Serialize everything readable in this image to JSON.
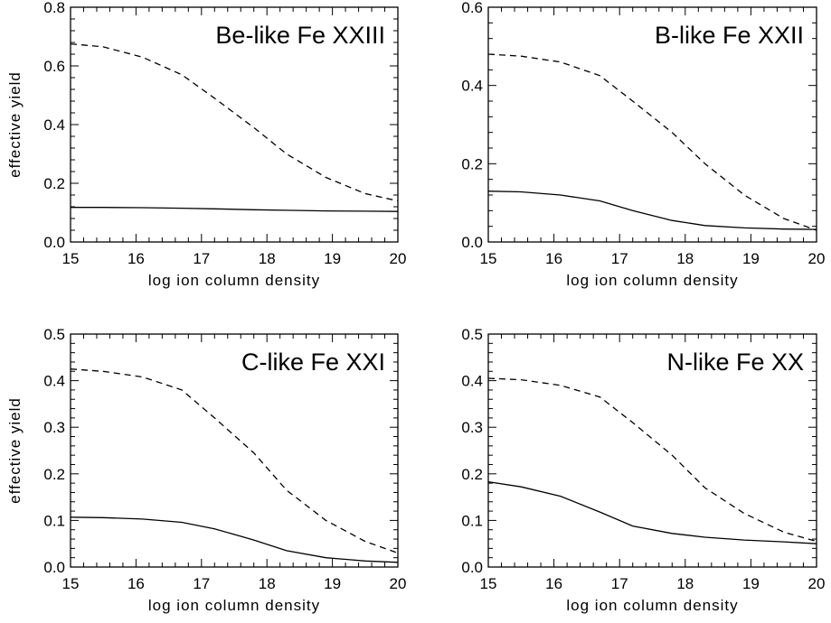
{
  "figure": {
    "xlabel": "log ion column density",
    "ylabel": "effective yield"
  },
  "chart_data": [
    {
      "type": "line",
      "title": "Be-like Fe XXIII",
      "xlabel": "log ion column density",
      "ylabel": "effective yield",
      "xlim": [
        15,
        20
      ],
      "ylim": [
        0.0,
        0.8
      ],
      "xticks": [
        "15",
        "16",
        "17",
        "18",
        "19",
        "20"
      ],
      "yticks": [
        "0.0",
        "0.2",
        "0.4",
        "0.6",
        "0.8"
      ],
      "x": [
        15.0,
        15.5,
        16.1,
        16.7,
        17.2,
        17.8,
        18.3,
        18.9,
        19.5,
        20.0
      ],
      "series": [
        {
          "style": "dashed",
          "values": [
            0.675,
            0.665,
            0.63,
            0.57,
            0.49,
            0.39,
            0.3,
            0.22,
            0.165,
            0.14
          ]
        },
        {
          "style": "solid",
          "values": [
            0.118,
            0.118,
            0.117,
            0.115,
            0.113,
            0.11,
            0.108,
            0.106,
            0.105,
            0.104
          ]
        }
      ],
      "grid": false
    },
    {
      "type": "line",
      "title": "B-like Fe XXII",
      "xlabel": "log ion column density",
      "ylabel": "",
      "xlim": [
        15,
        20
      ],
      "ylim": [
        0.0,
        0.6
      ],
      "xticks": [
        "15",
        "16",
        "17",
        "18",
        "19",
        "20"
      ],
      "yticks": [
        "0.0",
        "0.2",
        "0.4",
        "0.6"
      ],
      "x": [
        15.0,
        15.5,
        16.1,
        16.7,
        17.2,
        17.8,
        18.3,
        18.9,
        19.5,
        20.0
      ],
      "series": [
        {
          "style": "dashed",
          "values": [
            0.48,
            0.475,
            0.46,
            0.425,
            0.36,
            0.28,
            0.2,
            0.12,
            0.06,
            0.03
          ]
        },
        {
          "style": "solid",
          "values": [
            0.13,
            0.128,
            0.12,
            0.105,
            0.08,
            0.055,
            0.042,
            0.036,
            0.033,
            0.032
          ]
        }
      ],
      "grid": false
    },
    {
      "type": "line",
      "title": "C-like Fe XXI",
      "xlabel": "log ion column density",
      "ylabel": "effective yield",
      "xlim": [
        15,
        20
      ],
      "ylim": [
        0.0,
        0.5
      ],
      "xticks": [
        "15",
        "16",
        "17",
        "18",
        "19",
        "20"
      ],
      "yticks": [
        "0.0",
        "0.1",
        "0.2",
        "0.3",
        "0.4",
        "0.5"
      ],
      "x": [
        15.0,
        15.5,
        16.1,
        16.7,
        17.2,
        17.8,
        18.3,
        18.9,
        19.5,
        20.0
      ],
      "series": [
        {
          "style": "dashed",
          "values": [
            0.425,
            0.42,
            0.408,
            0.38,
            0.32,
            0.245,
            0.165,
            0.1,
            0.055,
            0.03
          ]
        },
        {
          "style": "solid",
          "values": [
            0.107,
            0.106,
            0.103,
            0.096,
            0.082,
            0.058,
            0.035,
            0.02,
            0.013,
            0.01
          ]
        }
      ],
      "grid": false
    },
    {
      "type": "line",
      "title": "N-like Fe XX",
      "xlabel": "log ion column density",
      "ylabel": "",
      "xlim": [
        15,
        20
      ],
      "ylim": [
        0.0,
        0.5
      ],
      "xticks": [
        "15",
        "16",
        "17",
        "18",
        "19",
        "20"
      ],
      "yticks": [
        "0.0",
        "0.1",
        "0.2",
        "0.3",
        "0.4",
        "0.5"
      ],
      "x": [
        15.0,
        15.5,
        16.1,
        16.7,
        17.2,
        17.8,
        18.3,
        18.9,
        19.5,
        20.0
      ],
      "series": [
        {
          "style": "dashed",
          "values": [
            0.405,
            0.402,
            0.39,
            0.365,
            0.31,
            0.24,
            0.17,
            0.115,
            0.075,
            0.055
          ]
        },
        {
          "style": "solid",
          "values": [
            0.183,
            0.172,
            0.152,
            0.118,
            0.088,
            0.072,
            0.064,
            0.058,
            0.054,
            0.05
          ]
        }
      ],
      "grid": false
    }
  ]
}
